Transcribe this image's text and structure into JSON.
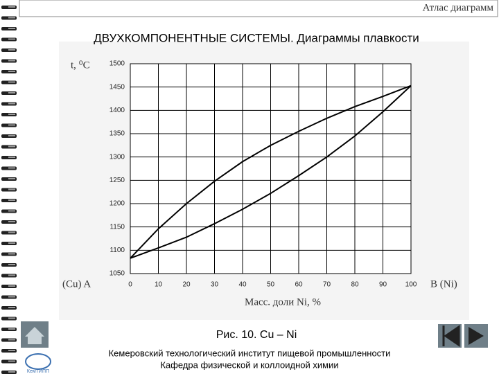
{
  "chart_data": {
    "type": "line",
    "title": "ДВУХКОМПОНЕНТНЫЕ СИСТЕМЫ. Диаграммы плавкости",
    "y_label": "t, ⁰C",
    "x_label": "Масс. доли Ni, %",
    "left_label": "(Cu) A",
    "right_label": "B (Ni)",
    "x": [
      0,
      10,
      20,
      30,
      40,
      50,
      60,
      70,
      80,
      90,
      100
    ],
    "series": [
      {
        "color": "#000000",
        "values": [
          1083,
          1146,
          1200,
          1248,
          1290,
          1325,
          1355,
          1383,
          1408,
          1430,
          1453
        ]
      },
      {
        "color": "#000000",
        "values": [
          1083,
          1105,
          1128,
          1157,
          1188,
          1222,
          1260,
          1300,
          1345,
          1397,
          1453
        ]
      }
    ],
    "xlim": [
      0,
      100
    ],
    "xticks": [
      0,
      10,
      20,
      30,
      40,
      50,
      60,
      70,
      80,
      90,
      100
    ],
    "ylim": [
      1050,
      1500
    ],
    "yticks": [
      1050,
      1100,
      1150,
      1200,
      1250,
      1300,
      1350,
      1400,
      1450,
      1500
    ],
    "grid": true
  },
  "slide": {
    "header": "Атлас диаграмм",
    "caption": "Рис. 10. Cu – Ni",
    "logo": "КемТИПП",
    "footer": [
      "Кемеровский технологический институт пищевой промышленности",
      "Кафедра физической и коллоидной химии"
    ]
  }
}
